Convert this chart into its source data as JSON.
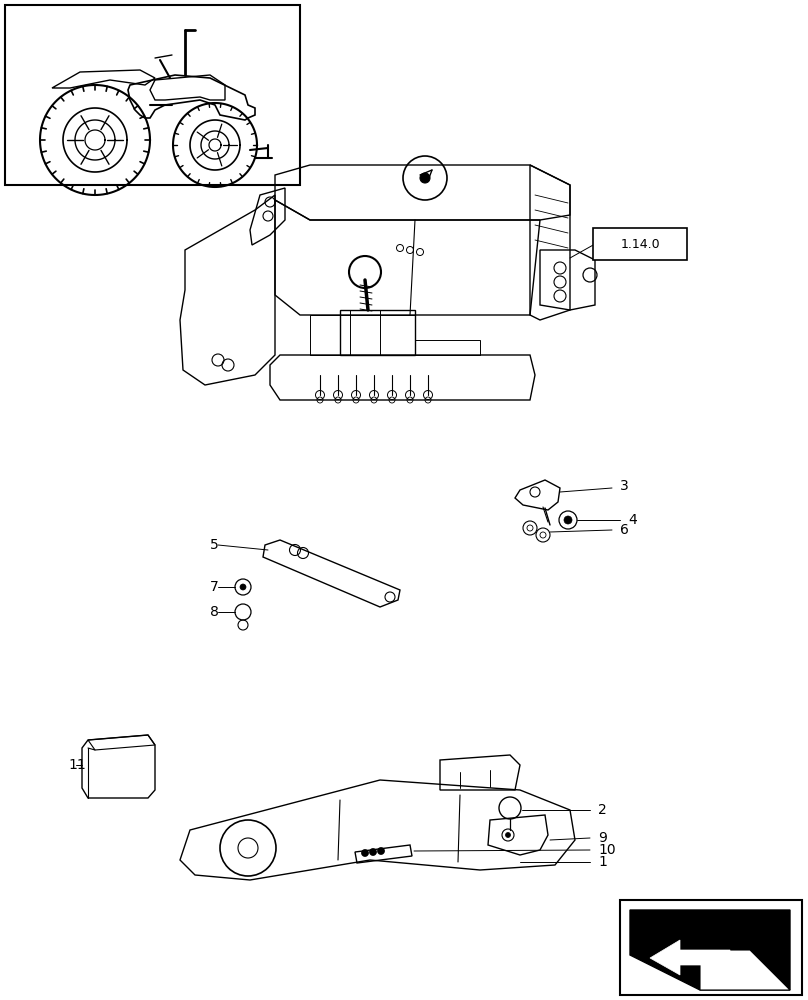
{
  "bg_color": "#ffffff",
  "line_color": "#000000",
  "ref_label": "1.14.0",
  "fontsize_label": 10,
  "fontsize_ref": 9,
  "lw_main": 1.0,
  "lw_thin": 0.6
}
